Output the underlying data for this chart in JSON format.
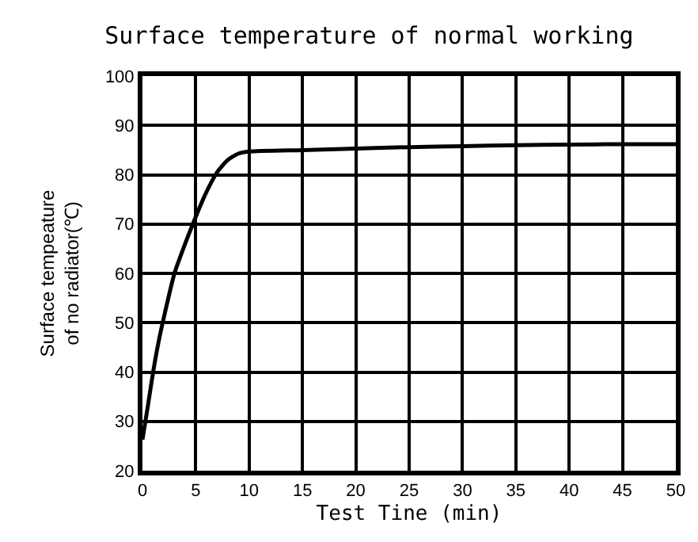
{
  "chart_data": {
    "type": "line",
    "title": "Surface temperature of normal working",
    "xlabel": "Test Tine (min)",
    "ylabel": "Surface tempeature\nof no radiator(℃)",
    "x": [
      0,
      0.5,
      1,
      1.5,
      2,
      3,
      4,
      5,
      6,
      7,
      8,
      9,
      10,
      15,
      20,
      25,
      30,
      35,
      40,
      45,
      50
    ],
    "series": [
      {
        "color": "#000000",
        "values": [
          26.3,
          33,
          40,
          46,
          51,
          60,
          66,
          71.5,
          76.5,
          80.5,
          83,
          84.3,
          84.7,
          85,
          85.3,
          85.6,
          85.8,
          86,
          86.1,
          86.2,
          86.2
        ]
      }
    ],
    "xlim": [
      0,
      50
    ],
    "xticks": [
      0,
      5,
      10,
      15,
      20,
      25,
      30,
      35,
      40,
      45,
      50
    ],
    "ylim": [
      20,
      100
    ],
    "yticks": [
      20,
      30,
      40,
      50,
      60,
      70,
      80,
      90,
      100
    ],
    "grid": true,
    "legend": false,
    "marker": "none",
    "line_style": "solid"
  }
}
